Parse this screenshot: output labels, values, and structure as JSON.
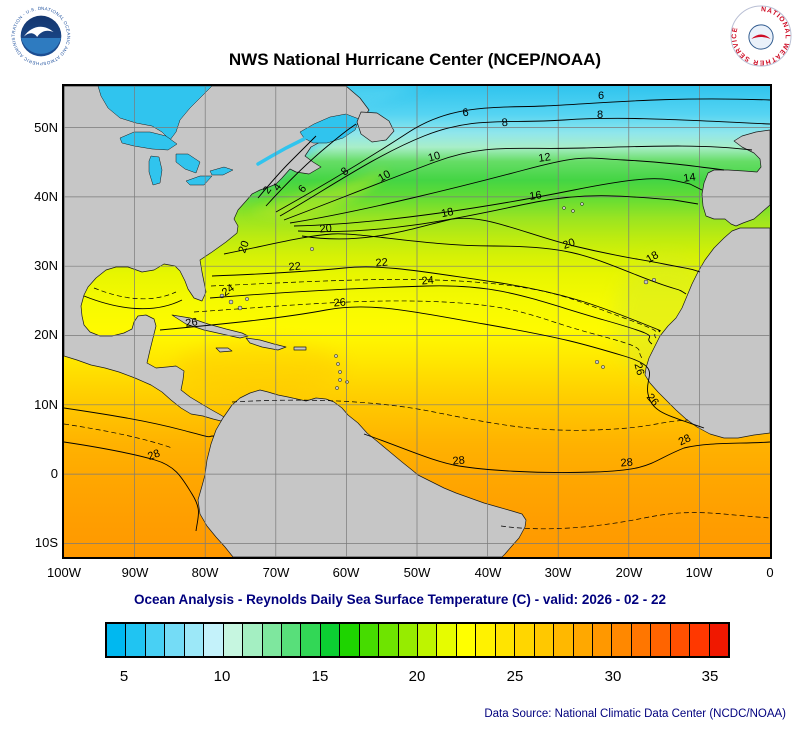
{
  "header": {
    "title": "NWS National Hurricane Center (NCEP/NOAA)",
    "noaa_ring_text": "NATIONAL OCEANIC AND ATMOSPHERIC ADMINISTRATION - U.S. DEPARTMENT OF COMMERCE",
    "nws_ring_text": "NATIONAL WEATHER SERVICE"
  },
  "subtitle": "Ocean Analysis - Reynolds Daily Sea Surface Temperature (C) - valid: 2026 - 02 - 22",
  "axes": {
    "lat": [
      "50N",
      "40N",
      "30N",
      "20N",
      "10N",
      "0",
      "10S"
    ],
    "lon": [
      "100W",
      "90W",
      "80W",
      "70W",
      "60W",
      "50W",
      "40W",
      "30W",
      "20W",
      "10W",
      "0"
    ]
  },
  "contours": {
    "labels": [
      "2",
      "4",
      "6",
      "8",
      "10",
      "12",
      "14",
      "16",
      "18",
      "20",
      "22",
      "24",
      "26",
      "28"
    ]
  },
  "colorbar": {
    "ticks": [
      "5",
      "10",
      "15",
      "20",
      "25",
      "30",
      "35"
    ],
    "colors": [
      "#00B8F0",
      "#20C4F2",
      "#48D0F4",
      "#74DCF6",
      "#9CE8F8",
      "#C4F2FA",
      "#C6F6E0",
      "#A4EFC2",
      "#7EE79E",
      "#58DF7A",
      "#32D756",
      "#0CCF32",
      "#1ED400",
      "#46DC00",
      "#6EE400",
      "#96EC00",
      "#BEF400",
      "#E6FC00",
      "#FFFF00",
      "#FFF200",
      "#FFE400",
      "#FFD600",
      "#FFC800",
      "#FFB800",
      "#FFA800",
      "#FF9800",
      "#FF8800",
      "#FF7600",
      "#FF6400",
      "#FF5000",
      "#FF3800",
      "#F01800"
    ]
  },
  "footer": {
    "source": "Data Source: National Climatic Data Center (NCDC/NOAA)"
  },
  "chart_data": {
    "type": "heatmap",
    "title": "NWS National Hurricane Center (NCEP/NOAA)",
    "subtitle": "Ocean Analysis - Reynolds Daily Sea Surface Temperature (C) - valid: 2026 - 02 - 22",
    "variable": "Reynolds Daily Sea Surface Temperature",
    "units": "C",
    "valid_date": "2026 - 02 - 22",
    "x_axis": {
      "type": "longitude",
      "ticks": [
        "100W",
        "90W",
        "80W",
        "70W",
        "60W",
        "50W",
        "40W",
        "30W",
        "20W",
        "10W",
        "0"
      ]
    },
    "y_axis": {
      "type": "latitude",
      "ticks": [
        "10S",
        "0",
        "10N",
        "20N",
        "30N",
        "40N",
        "50N"
      ]
    },
    "contour_interval_c": 2,
    "labeled_contours_c": [
      2,
      4,
      6,
      8,
      10,
      12,
      14,
      16,
      18,
      20,
      22,
      24,
      26,
      28
    ],
    "colorbar": {
      "min": 4,
      "max": 36,
      "tick_values": [
        5,
        10,
        15,
        20,
        25,
        30,
        35
      ]
    },
    "source": "National Climatic Data Center (NCDC/NOAA)"
  }
}
